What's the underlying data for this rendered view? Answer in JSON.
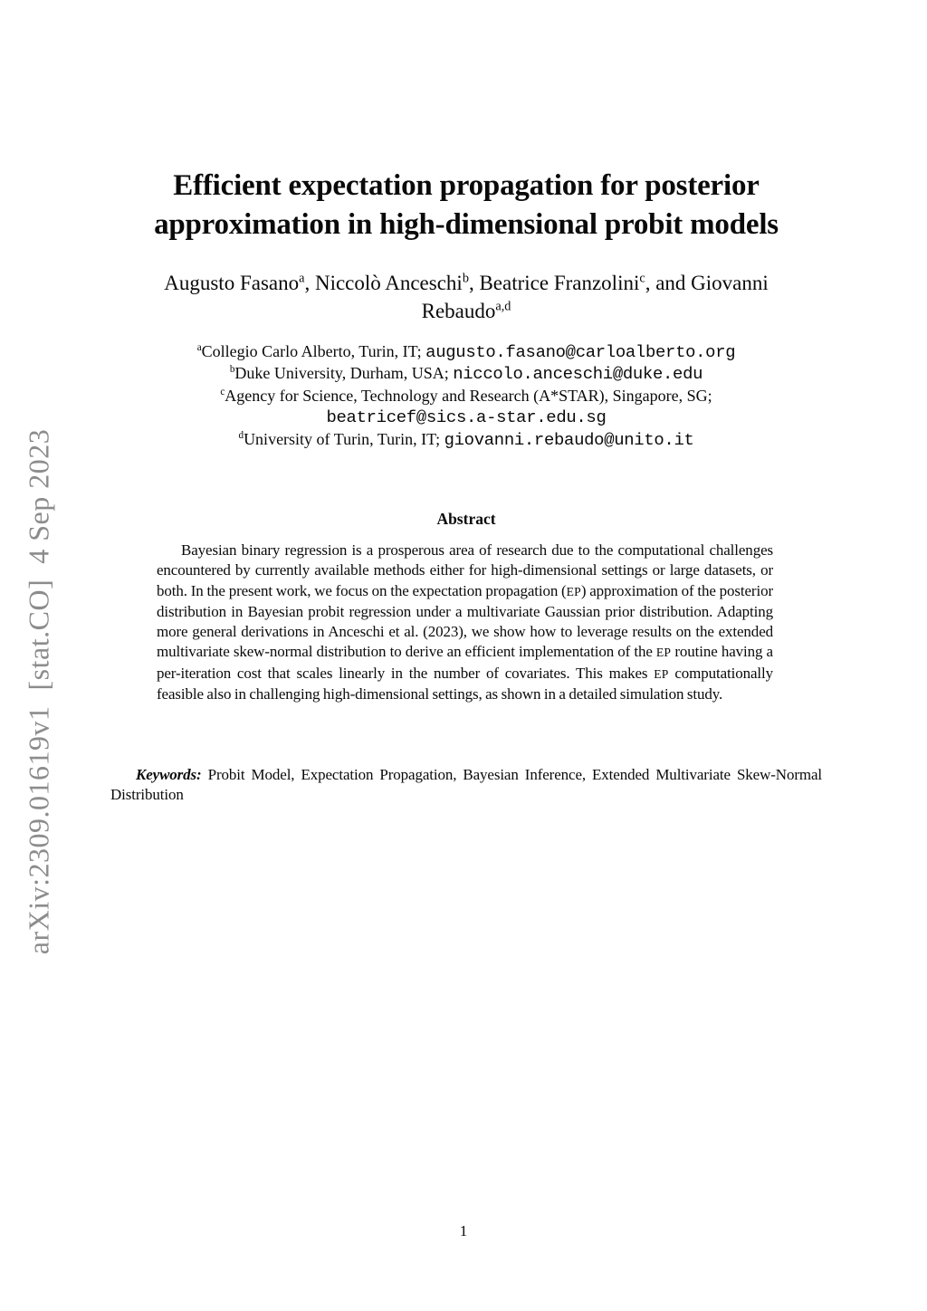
{
  "page": {
    "watermark": "arXiv:2309.01619v1  [stat.CO]  4 Sep 2023",
    "page_number": "1"
  },
  "paper": {
    "title_lines": [
      "Efficient expectation propagation for posterior",
      "approximation in high-dimensional probit models"
    ],
    "author_lines": [
      [
        {
          "k": "text",
          "t": "Augusto Fasano"
        },
        {
          "k": "sup",
          "t": "a"
        },
        {
          "k": "text",
          "t": ", Niccolò Anceschi"
        },
        {
          "k": "sup",
          "t": "b"
        },
        {
          "k": "text",
          "t": ", Beatrice Franzolini"
        },
        {
          "k": "sup",
          "t": "c"
        },
        {
          "k": "text",
          "t": ", and Giovanni"
        }
      ],
      [
        {
          "k": "text",
          "t": "Rebaudo"
        },
        {
          "k": "sup",
          "t": "a,d"
        }
      ]
    ],
    "affiliation_lines": [
      [
        {
          "k": "sup",
          "t": "a"
        },
        {
          "k": "text",
          "t": "Collegio Carlo Alberto, Turin, IT; "
        },
        {
          "k": "mono",
          "t": "augusto.fasano@carloalberto.org"
        }
      ],
      [
        {
          "k": "sup",
          "t": "b"
        },
        {
          "k": "text",
          "t": "Duke University, Durham, USA; "
        },
        {
          "k": "mono",
          "t": "niccolo.anceschi@duke.edu"
        }
      ],
      [
        {
          "k": "sup",
          "t": "c"
        },
        {
          "k": "text",
          "t": "Agency for Science, Technology and Research (A*STAR), Singapore, SG;"
        }
      ],
      [
        {
          "k": "mono",
          "t": "beatricef@sics.a-star.edu.sg"
        }
      ],
      [
        {
          "k": "sup",
          "t": "d"
        },
        {
          "k": "text",
          "t": "University of Turin, Turin, IT; "
        },
        {
          "k": "mono",
          "t": "giovanni.rebaudo@unito.it"
        }
      ]
    ],
    "abstract": {
      "heading": "Abstract",
      "segments": [
        {
          "k": "text",
          "t": "Bayesian binary regression is a prosperous area of research due to the computational challenges encountered by currently available methods either for high-dimensional settings or large datasets, or both. In the present work, we focus on the expectation propagation ("
        },
        {
          "k": "sc",
          "t": "EP"
        },
        {
          "k": "text",
          "t": ") approximation of the posterior distribution in Bayesian probit regression under a multivariate Gaussian prior distribution. Adapting more general derivations in Anceschi et al. (2023), we show how to leverage results on the extended multivariate skew-normal distribution to derive an efficient implementation of the "
        },
        {
          "k": "sc",
          "t": "EP"
        },
        {
          "k": "text",
          "t": " routine having a per-iteration cost that scales linearly in the number of covariates. This makes "
        },
        {
          "k": "sc",
          "t": "EP"
        },
        {
          "k": "text",
          "t": " computationally feasible also in challenging high-dimensional settings, as shown in a detailed simulation study."
        }
      ]
    },
    "keywords": {
      "segments": [
        {
          "k": "kw",
          "t": "Keywords:"
        },
        {
          "k": "text",
          "t": " Probit Model, Expectation Propagation, Bayesian Inference, Extended Multivariate Skew-Normal Distribution"
        }
      ]
    }
  }
}
